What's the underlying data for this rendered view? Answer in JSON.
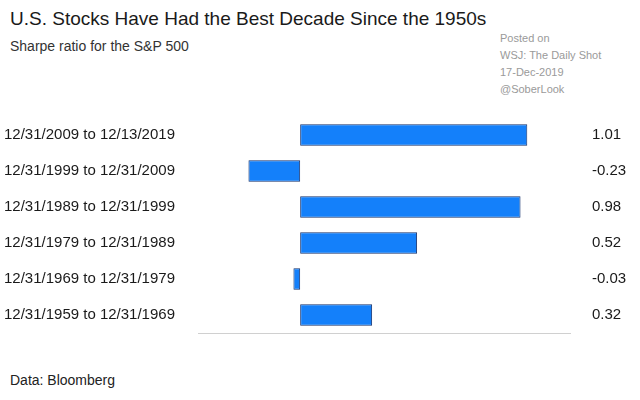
{
  "chart_data": {
    "type": "bar",
    "title": "U.S. Stocks Have Had the Best Decade Since the 1950s",
    "subtitle": "Sharpe ratio for the S&P 500",
    "watermark": [
      "Posted on",
      "WSJ: The Daily Shot",
      "17-Dec-2019",
      "@SoberLook"
    ],
    "source": "Data: Bloomberg",
    "orientation": "horizontal",
    "categories": [
      "12/31/2009 to 12/13/2019",
      "12/31/1999 to 12/31/2009",
      "12/31/1989 to 12/31/1999",
      "12/31/1979 to 12/31/1989",
      "12/31/1969 to 12/31/1979",
      "12/31/1959 to 12/31/1969"
    ],
    "values": [
      1.01,
      -0.23,
      0.98,
      0.52,
      -0.03,
      0.32
    ],
    "color": "#1480fa",
    "xlim": [
      -0.45,
      1.2
    ],
    "xticks": [],
    "grid": false,
    "data_labels": true,
    "tick_labels": "y"
  }
}
